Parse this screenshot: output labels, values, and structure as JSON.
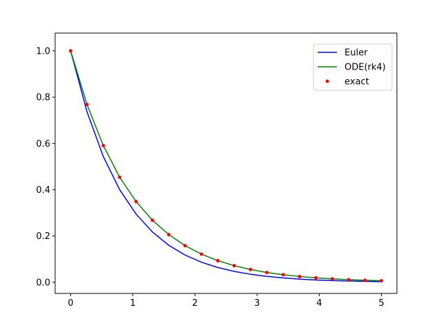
{
  "chart_data": {
    "type": "line",
    "title": "",
    "xlabel": "",
    "ylabel": "",
    "xlim": [
      -0.25,
      5.25
    ],
    "ylim": [
      -0.048,
      1.077
    ],
    "grid": false,
    "legend_placement": "top-right",
    "xticks": [
      0,
      1,
      2,
      3,
      4,
      5
    ],
    "xtick_labels": [
      "0",
      "1",
      "2",
      "3",
      "4",
      "5"
    ],
    "yticks": [
      0.0,
      0.2,
      0.4,
      0.6,
      0.8,
      1.0
    ],
    "ytick_labels": [
      "0.0",
      "0.2",
      "0.4",
      "0.6",
      "0.8",
      "1.0"
    ],
    "x": [
      0,
      0.263,
      0.526,
      0.789,
      1.053,
      1.316,
      1.579,
      1.842,
      2.105,
      2.368,
      2.632,
      2.895,
      3.158,
      3.421,
      3.684,
      3.947,
      4.211,
      4.474,
      4.737,
      5.0
    ],
    "series": [
      {
        "name": "Euler",
        "style": "line",
        "color": "#0000ff",
        "values": [
          1,
          0.7368,
          0.5429,
          0.4001,
          0.2948,
          0.2172,
          0.16,
          0.1179,
          0.0869,
          0.064,
          0.0472,
          0.0348,
          0.0256,
          0.0189,
          0.0139,
          0.0102,
          0.0075,
          0.0056,
          0.0041,
          0.003
        ]
      },
      {
        "name": "ODE(rk4)",
        "style": "line",
        "color": "#008000",
        "values": [
          1,
          0.7686,
          0.5908,
          0.4541,
          0.349,
          0.2683,
          0.2062,
          0.1585,
          0.1218,
          0.0936,
          0.072,
          0.0553,
          0.0425,
          0.0327,
          0.0251,
          0.0193,
          0.0148,
          0.0114,
          0.0088,
          0.0067
        ]
      },
      {
        "name": "exact",
        "style": "points",
        "color": "#ff0000",
        "values": [
          1,
          0.7686,
          0.5908,
          0.4541,
          0.349,
          0.2683,
          0.2062,
          0.1585,
          0.1218,
          0.0936,
          0.072,
          0.0553,
          0.0425,
          0.0327,
          0.0251,
          0.0193,
          0.0148,
          0.0114,
          0.0088,
          0.0067
        ]
      }
    ]
  }
}
